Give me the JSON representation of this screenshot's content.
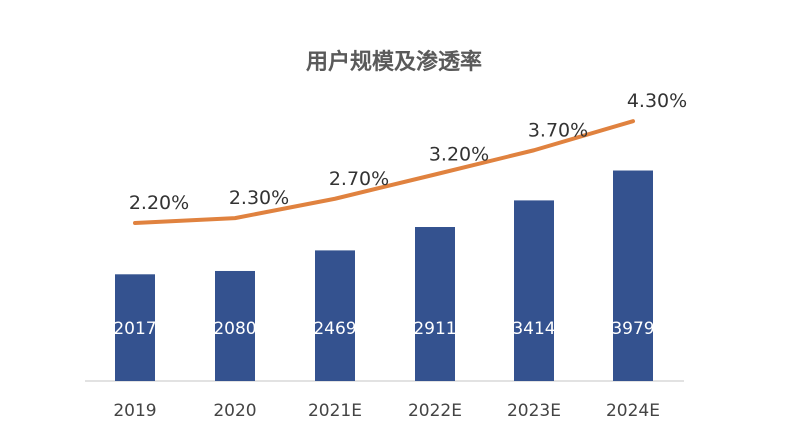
{
  "chart_data": {
    "type": "bar",
    "title": "用户规模及渗透率",
    "categories": [
      "2019",
      "2020",
      "2021E",
      "2022E",
      "2023E",
      "2024E"
    ],
    "series": [
      {
        "type": "bar",
        "values": [
          2017,
          2080,
          2469,
          2911,
          3414,
          3979
        ],
        "labels": [
          "2017",
          "2080",
          "2469",
          "2911",
          "3414",
          "3979"
        ],
        "color": "#34528f"
      },
      {
        "type": "line",
        "values": [
          2.2,
          2.3,
          2.7,
          3.2,
          3.7,
          4.3
        ],
        "labels": [
          "2.20%",
          "2.30%",
          "2.70%",
          "3.20%",
          "3.70%",
          "4.30%"
        ],
        "color": "#e0823f"
      }
    ],
    "grid": false
  }
}
